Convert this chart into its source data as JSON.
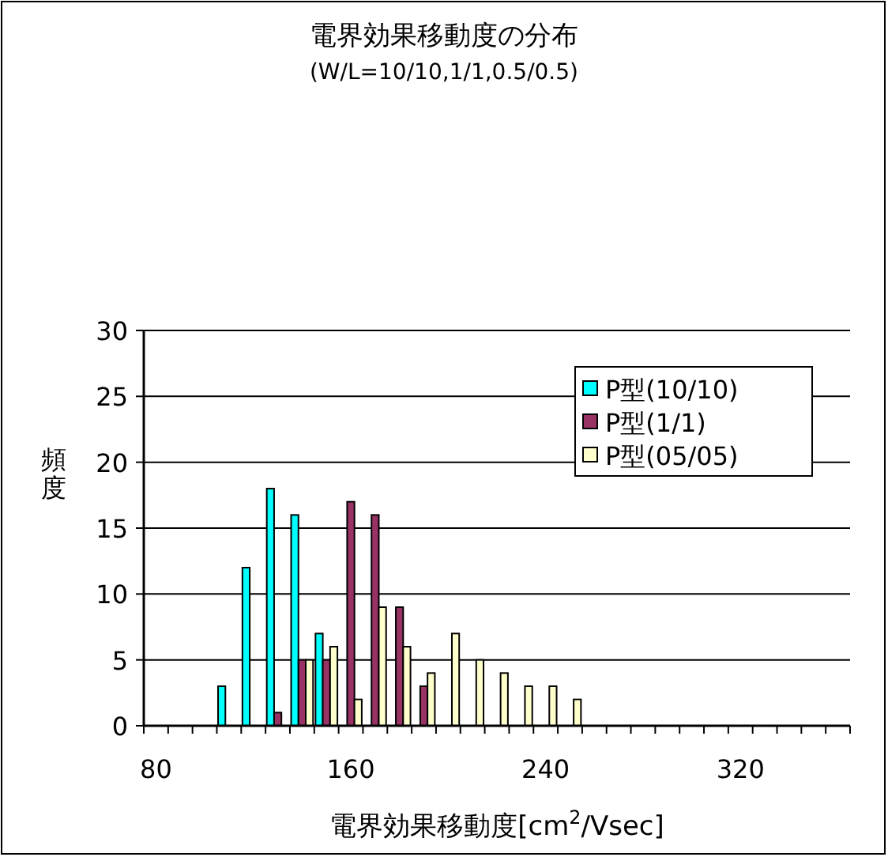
{
  "chart_data": {
    "type": "bar",
    "title": "電界効果移動度の分布",
    "subtitle": "(W/L=10/10,1/1,0.5/0.5)",
    "xlabel": "電界効果移動度[cm$^{2}$/Vsec]",
    "ylabel": "頻度",
    "categories": [
      "80",
      null,
      null,
      null,
      null,
      null,
      null,
      null,
      "160",
      null,
      null,
      null,
      null,
      null,
      null,
      null,
      "240",
      null,
      null,
      null,
      null,
      null,
      null,
      null,
      "320",
      null,
      null,
      null,
      null
    ],
    "series": [
      {
        "name": "P型(10/10)",
        "color": "#00ffff",
        "values": [
          0,
          0,
          0,
          3,
          12,
          18,
          16,
          7,
          0,
          0,
          0,
          0,
          0,
          0,
          0,
          0,
          0,
          0,
          0,
          0,
          0,
          0,
          0,
          0,
          0,
          0,
          0,
          0,
          0
        ]
      },
      {
        "name": "P型(1/1)",
        "color": "#993366",
        "values": [
          0,
          0,
          0,
          0,
          0,
          1,
          5,
          5,
          17,
          16,
          9,
          3,
          0,
          0,
          0,
          0,
          0,
          0,
          0,
          0,
          0,
          0,
          0,
          0,
          0,
          0,
          0,
          0,
          0
        ]
      },
      {
        "name": "P型(05/05)",
        "color": "#ffffcc",
        "values": [
          0,
          0,
          0,
          0,
          0,
          0,
          5,
          6,
          2,
          9,
          6,
          4,
          7,
          5,
          4,
          3,
          3,
          2,
          0,
          0,
          0,
          0,
          0,
          0,
          0,
          0,
          0,
          0,
          0
        ]
      }
    ],
    "ylim": [
      0,
      30
    ],
    "yticks": [
      0,
      5,
      10,
      15,
      20,
      25,
      30
    ],
    "grid": "y",
    "legend": "top right"
  }
}
